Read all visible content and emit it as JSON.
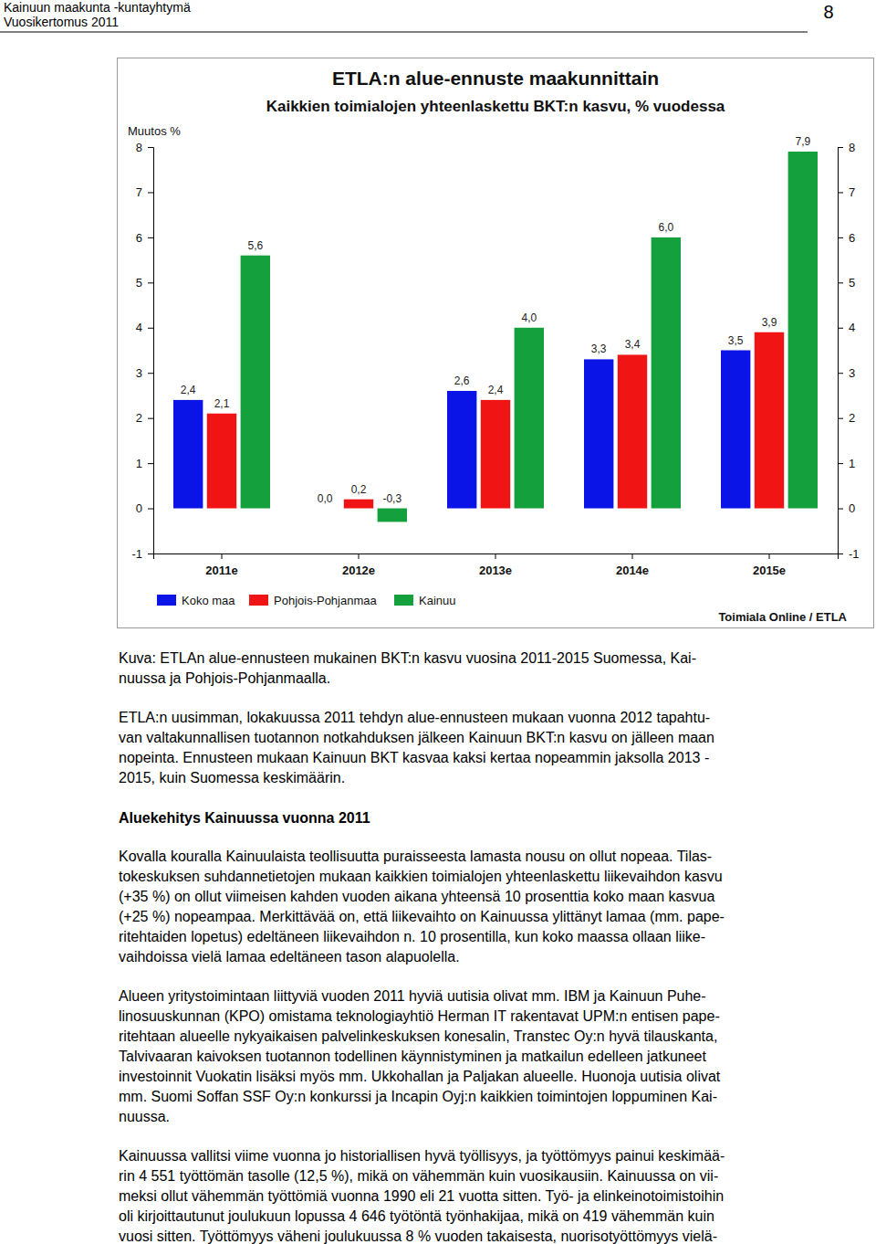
{
  "header": {
    "organization": "Kainuun maakunta -kuntayhtymä",
    "report": "Vuosikertomus 2011",
    "page_number": "8"
  },
  "chart_data": {
    "type": "bar",
    "title": "ETLA:n alue-ennuste maakunnittain",
    "subtitle": "Kaikkien toimialojen yhteenlaskettu BKT:n kasvu, % vuodessa",
    "ylabel": "Muutos %",
    "source": "Toimiala Online / ETLA",
    "categories": [
      "2011e",
      "2012e",
      "2013e",
      "2014e",
      "2015e"
    ],
    "series": [
      {
        "name": "Koko maa",
        "color": "#0a14e6",
        "values": [
          2.4,
          0.0,
          2.6,
          3.3,
          3.5
        ],
        "value_labels": [
          "2,4",
          "0,0",
          "2,6",
          "3,3",
          "3,5"
        ]
      },
      {
        "name": "Pohjois-Pohjanmaa",
        "color": "#f01414",
        "values": [
          2.1,
          0.2,
          2.4,
          3.4,
          3.9
        ],
        "value_labels": [
          "2,1",
          "0,2",
          "2,4",
          "3,4",
          "3,9"
        ]
      },
      {
        "name": "Kainuu",
        "color": "#14a03c",
        "values": [
          5.6,
          -0.3,
          4.0,
          6.0,
          7.9
        ],
        "value_labels": [
          "5,6",
          "-0,3",
          "4,0",
          "6,0",
          "7,9"
        ]
      }
    ],
    "ylim": [
      -1,
      8
    ],
    "yticks": [
      -1,
      0,
      1,
      2,
      3,
      4,
      5,
      6,
      7,
      8
    ],
    "grid": false,
    "legend": "bottom",
    "data_labels": true
  },
  "caption": [
    "Kuva: ETLAn alue-ennusteen mukainen BKT:n kasvu  vuosina 2011-2015 Suomessa, Kai-",
    "nuussa ja Pohjois-Pohjanmaalla."
  ],
  "intro": [
    "ETLA:n uusimman, lokakuussa 2011 tehdyn alue-ennusteen mukaan vuonna 2012 tapahtu-",
    "van valtakunnallisen tuotannon notkahduksen jälkeen Kainuun BKT:n kasvu on jälleen maan",
    "nopeinta. Ennusteen mukaan Kainuun BKT kasvaa kaksi kertaa nopeammin jaksolla 2013 -",
    "2015, kuin Suomessa keskimäärin."
  ],
  "heading": "Aluekehitys Kainuussa vuonna 2011",
  "paragraphs": [
    [
      "Kovalla kouralla Kainuulaista teollisuutta puraisseesta lamasta nousu on ollut nopeaa. Tilas-",
      "tokeskuksen suhdannetietojen mukaan kaikkien toimialojen yhteenlaskettu liikevaihdon kasvu",
      "(+35 %) on ollut viimeisen kahden vuoden aikana yhteensä 10 prosenttia koko maan kasvua",
      "(+25 %) nopeampaa. Merkittävää on, että liikevaihto on Kainuussa ylittänyt lamaa (mm. pape-",
      "ritehtaiden lopetus) edeltäneen liikevaihdon n. 10 prosentilla, kun koko maassa ollaan liike-",
      "vaihdoissa vielä lamaa edeltäneen tason alapuolella."
    ],
    [
      "Alueen yritystoimintaan liittyviä vuoden 2011 hyviä uutisia olivat mm. IBM ja Kainuun Puhe-",
      "linosuuskunnan (KPO) omistama teknologiayhtiö Herman IT rakentavat UPM:n entisen pape-",
      "ritehtaan alueelle nykyaikaisen palvelinkeskuksen konesalin, Transtec Oy:n hyvä tilauskanta,",
      "Talvivaaran kaivoksen tuotannon todellinen käynnistyminen ja matkailun edelleen jatkuneet",
      "investoinnit Vuokatin lisäksi myös mm. Ukkohallan ja Paljakan alueelle. Huonoja uutisia olivat",
      "mm. Suomi Soffan SSF Oy:n konkurssi ja Incapin Oyj:n kaikkien toimintojen loppuminen Kai-",
      "nuussa."
    ],
    [
      "Kainuussa vallitsi viime vuonna jo historiallisen hyvä työllisyys, ja työttömyys painui keskimää-",
      "rin 4 551 työttömän tasolle (12,5 %), mikä on vähemmän kuin vuosikausiin. Kainuussa on vii-",
      "meksi ollut vähemmän työttömiä vuonna 1990 eli 21 vuotta sitten. Työ- ja elinkeinotoimistoihin",
      "oli kirjoittautunut joulukuun lopussa 4 646 työtöntä työnhakijaa, mikä on 419 vähemmän kuin",
      "vuosi sitten. Työttömyys väheni joulukuussa 8 % vuoden takaisesta, nuorisotyöttömyys vielä-"
    ]
  ]
}
